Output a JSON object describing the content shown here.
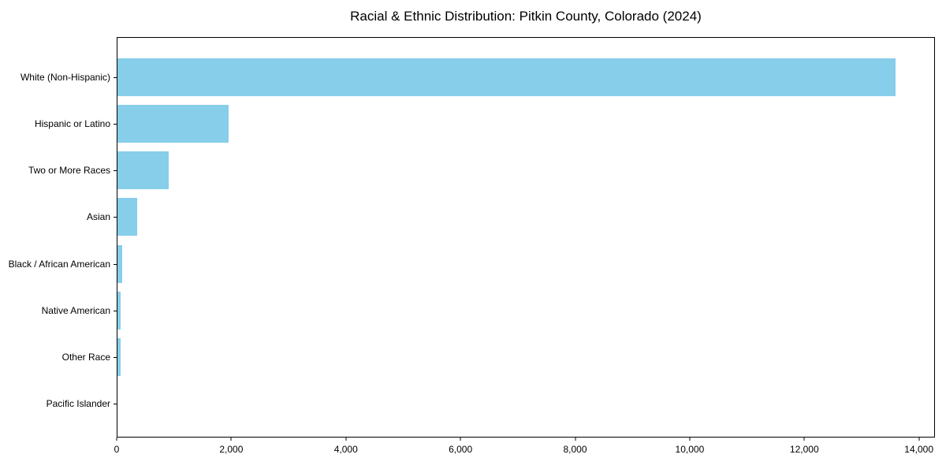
{
  "chart_data": {
    "type": "bar",
    "orientation": "horizontal",
    "title": "Racial & Ethnic Distribution: Pitkin County, Colorado (2024)",
    "categories": [
      "White (Non-Hispanic)",
      "Hispanic or Latino",
      "Two or More Races",
      "Asian",
      "Black / African American",
      "Native American",
      "Other Race",
      "Pacific Islander"
    ],
    "values": [
      13600,
      1950,
      900,
      350,
      80,
      60,
      60,
      0
    ],
    "xlabel": "",
    "ylabel": "",
    "xlim": [
      0,
      14280
    ],
    "xticks": [
      {
        "value": 0,
        "label": "0"
      },
      {
        "value": 2000,
        "label": "2,000"
      },
      {
        "value": 4000,
        "label": "4,000"
      },
      {
        "value": 6000,
        "label": "6,000"
      },
      {
        "value": 8000,
        "label": "8,000"
      },
      {
        "value": 10000,
        "label": "10,000"
      },
      {
        "value": 12000,
        "label": "12,000"
      },
      {
        "value": 14000,
        "label": "14,000"
      }
    ],
    "bar_color": "#87CEEB",
    "axis_color": "#000000",
    "grid": false,
    "legend_position": "none"
  }
}
